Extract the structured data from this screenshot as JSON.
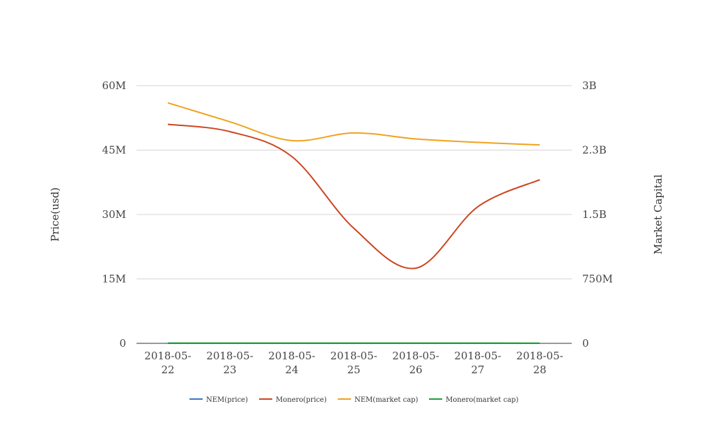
{
  "chart_data": {
    "type": "line",
    "title": "",
    "x": [
      "2018-05-22",
      "2018-05-23",
      "2018-05-24",
      "2018-05-25",
      "2018-05-26",
      "2018-05-27",
      "2018-05-28"
    ],
    "x_tick_lines": [
      [
        "2018-05-",
        "22"
      ],
      [
        "2018-05-",
        "23"
      ],
      [
        "2018-05-",
        "24"
      ],
      [
        "2018-05-",
        "25"
      ],
      [
        "2018-05-",
        "26"
      ],
      [
        "2018-05-",
        "27"
      ],
      [
        "2018-05-",
        "28"
      ]
    ],
    "ylabel_left": "Price(usd)",
    "ylabel_right": "Market Capital",
    "ylim_left": [
      0,
      60000000
    ],
    "ylim_right": [
      0,
      3000000000
    ],
    "left_ticks": [
      {
        "value": 0,
        "label": "0"
      },
      {
        "value": 15000000,
        "label": "15M"
      },
      {
        "value": 30000000,
        "label": "30M"
      },
      {
        "value": 45000000,
        "label": "45M"
      },
      {
        "value": 60000000,
        "label": "60M"
      }
    ],
    "right_ticks": [
      {
        "value": 0,
        "label": "0"
      },
      {
        "value": 750000000,
        "label": "750M"
      },
      {
        "value": 1500000000,
        "label": "1.5B"
      },
      {
        "value": 2250000000,
        "label": "2.3B"
      },
      {
        "value": 3000000000,
        "label": "3B"
      }
    ],
    "grid": true,
    "legend_position": "bottom",
    "series": [
      {
        "name": "NEM(price)",
        "axis": "left",
        "color": "#3b78c6",
        "values": [
          0.22,
          0.2,
          0.18,
          0.19,
          0.18,
          0.18,
          0.17
        ]
      },
      {
        "name": "Monero(price)",
        "axis": "left",
        "color": "#cc4521",
        "values": [
          51000000,
          49300000,
          43500000,
          26800000,
          17500000,
          31800000,
          38100000
        ]
      },
      {
        "name": "NEM(market cap)",
        "axis": "right",
        "color": "#f0a21d",
        "values": [
          2800000000,
          2580000000,
          2360000000,
          2450000000,
          2380000000,
          2340000000,
          2310000000
        ]
      },
      {
        "name": "Monero(market cap)",
        "axis": "right",
        "color": "#1e9e3a",
        "values": [
          2700000,
          2660000,
          2590000,
          2620000,
          2570000,
          2550000,
          2530000
        ]
      }
    ]
  }
}
